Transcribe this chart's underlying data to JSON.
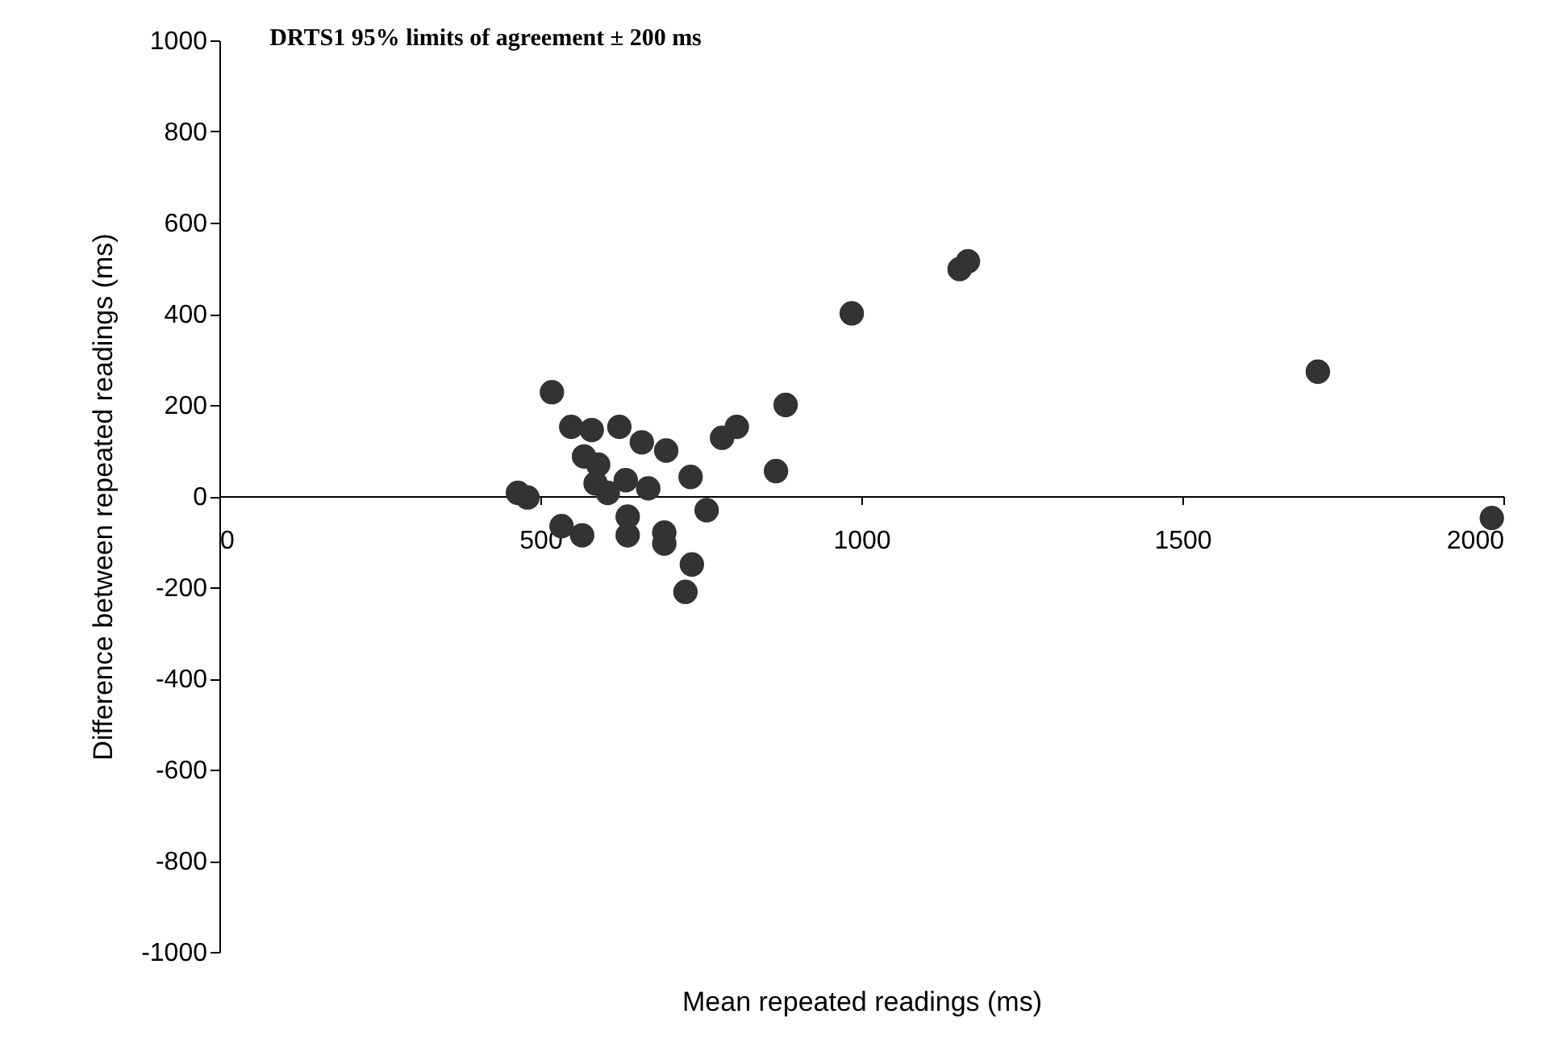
{
  "chart_data": {
    "type": "scatter",
    "title": "DRTS1 95% limits of agreement ± 200 ms",
    "xlabel": "Mean repeated readings (ms)",
    "ylabel": "Difference between repeated readings (ms)",
    "x": [
      518,
      548,
      580,
      623,
      658,
      696,
      568,
      590,
      586,
      605,
      633,
      668,
      734,
      783,
      806,
      882,
      867,
      985,
      1153,
      1166,
      465,
      480,
      759,
      533,
      565,
      636,
      636,
      693,
      693,
      736,
      726,
      1711,
      1982
    ],
    "series": [
      {
        "color": "#333333",
        "values": [
          228,
          152,
          145,
          152,
          118,
          100,
          87,
          69,
          28,
          7,
          35,
          17,
          42,
          128,
          152,
          200,
          55,
          401,
          498,
          515,
          7,
          -3,
          -31,
          -66,
          -86,
          -45,
          -86,
          -80,
          -104,
          -150,
          -210,
          273,
          -48
        ]
      }
    ],
    "xlim": [
      0,
      2000
    ],
    "xticks": [
      0,
      500,
      1000,
      1500,
      2000
    ],
    "ylim": [
      -1000,
      1000
    ],
    "yticks": [
      -1000,
      -800,
      -600,
      -400,
      -200,
      0,
      200,
      400,
      600,
      800,
      1000
    ],
    "grid": false,
    "marker": "circle",
    "legend": false
  }
}
